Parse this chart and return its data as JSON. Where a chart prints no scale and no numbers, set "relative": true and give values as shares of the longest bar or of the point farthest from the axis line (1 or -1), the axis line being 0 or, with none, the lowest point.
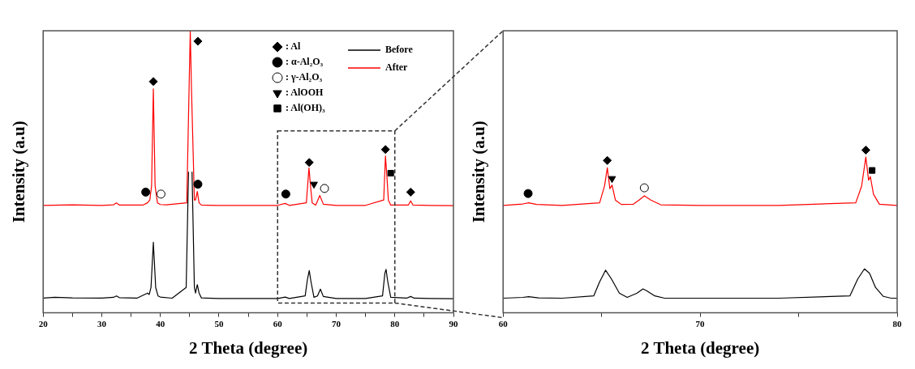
{
  "chart_data": [
    {
      "type": "line",
      "relative": true,
      "xlabel": "2 Theta (degree)",
      "ylabel": "Intensity (a.u)",
      "legend": "top right",
      "xlim": [
        20,
        90
      ],
      "xticks": [
        20,
        {
          "value": 25,
          "label": null
        },
        30,
        {
          "value": 35,
          "label": null
        },
        40,
        {
          "value": 45,
          "label": null
        },
        50,
        {
          "value": 55,
          "label": null
        },
        60,
        {
          "value": 65,
          "label": null
        },
        70,
        {
          "value": 75,
          "label": null
        },
        80,
        {
          "value": 85,
          "label": null
        },
        90
      ],
      "series": [
        {
          "name": "Before",
          "type": "line",
          "color": "#000000",
          "x": [
            20,
            22,
            25,
            30,
            32,
            32.5,
            33,
            36,
            37.8,
            38.1,
            38.4,
            38.8,
            39.2,
            39.6,
            40,
            42,
            44.4,
            44.8,
            45.1,
            45.4,
            45.8,
            46.0,
            46.3,
            46.6,
            47,
            50,
            55,
            60,
            61.3,
            62,
            64.7,
            65.1,
            65.4,
            65.7,
            66.2,
            66.8,
            67.3,
            67.8,
            70,
            75,
            77.9,
            78.3,
            78.5,
            78.8,
            79.3,
            82,
            82.7,
            83.3,
            86,
            90
          ],
          "values": [
            0.052,
            0.055,
            0.053,
            0.052,
            0.055,
            0.06,
            0.054,
            0.052,
            0.07,
            0.065,
            0.09,
            0.25,
            0.09,
            0.06,
            0.056,
            0.052,
            0.09,
            0.5,
            null,
            0.5,
            0.09,
            0.07,
            0.1,
            0.07,
            0.053,
            0.051,
            0.051,
            0.051,
            0.056,
            0.051,
            0.06,
            0.12,
            0.15,
            0.11,
            0.055,
            0.06,
            0.084,
            0.058,
            0.051,
            0.051,
            0.06,
            0.14,
            0.154,
            0.11,
            0.055,
            0.052,
            0.058,
            0.052,
            0.051,
            0.05
          ]
        },
        {
          "name": "After",
          "type": "line",
          "color": "#ff0000",
          "x": [
            20,
            25,
            30,
            32,
            32.5,
            33,
            37,
            37.8,
            38.2,
            38.5,
            38.8,
            39.1,
            39.5,
            40,
            41,
            44.5,
            44.9,
            45.1,
            45.3,
            45.8,
            46.0,
            46.3,
            46.6,
            47,
            50,
            55,
            60,
            61.3,
            62,
            64.9,
            65.35,
            65.6,
            65.9,
            66.5,
            67.2,
            67.8,
            70,
            75,
            78.1,
            78.4,
            78.65,
            78.9,
            79.3,
            82.3,
            82.7,
            83.1,
            86,
            90
          ],
          "values": [
            0.381,
            0.383,
            0.381,
            0.383,
            0.39,
            0.382,
            0.382,
            0.39,
            0.4,
            0.45,
            0.794,
            0.45,
            0.39,
            0.384,
            0.383,
            0.39,
            0.8,
            1.0,
            0.8,
            0.4,
            0.4,
            0.43,
            0.39,
            0.382,
            0.381,
            0.381,
            0.381,
            0.388,
            0.381,
            0.39,
            0.514,
            0.453,
            0.39,
            0.382,
            0.416,
            0.385,
            0.381,
            0.381,
            0.4,
            0.556,
            0.483,
            0.4,
            0.382,
            0.382,
            0.397,
            0.382,
            0.381,
            0.38
          ]
        },
        {
          "name": ": Al",
          "type": "scatter",
          "marker": "diamond",
          "color": "#000000",
          "x": [
            38.8,
            46.4,
            65.4,
            78.4,
            82.7
          ],
          "values": [
            0.82,
            0.963,
            0.533,
            0.579,
            0.428
          ]
        },
        {
          "name": ": α-Al₂O₃",
          "type": "scatter",
          "marker": "circle",
          "color": "#000000",
          "x": [
            37.5,
            46.4,
            61.4
          ],
          "values": [
            0.428,
            0.456,
            0.421
          ]
        },
        {
          "name": ": γ-Al₂O₃",
          "type": "scatter",
          "marker": "circle",
          "color": "#ffffff",
          "x": [
            40.1,
            68.0
          ],
          "values": [
            0.421,
            0.441
          ]
        },
        {
          "name": ": AlOOH",
          "type": "scatter",
          "marker": "triangle",
          "color": "#000000",
          "x": [
            66.2
          ],
          "values": [
            0.456
          ]
        },
        {
          "name": ": Al(OH)₃",
          "type": "scatter",
          "marker": "square",
          "color": "#000000",
          "x": [
            79.3
          ],
          "values": [
            0.495
          ]
        }
      ]
    },
    {
      "type": "line",
      "relative": true,
      "xlabel": "2 Theta (degree)",
      "ylabel": "Intensity (a.u)",
      "xlim": [
        60,
        80
      ],
      "xticks": [
        60,
        {
          "value": 65,
          "label": null
        },
        70,
        {
          "value": 75,
          "label": null
        },
        80
      ],
      "series": [
        {
          "type": "line",
          "color": "#000000",
          "x": [
            60,
            61,
            61.3,
            61.8,
            63,
            64.6,
            64.9,
            65.2,
            65.5,
            65.9,
            66.3,
            66.8,
            67.1,
            67.3,
            67.7,
            68.2,
            70,
            74,
            77.6,
            78,
            78.34,
            78.6,
            78.9,
            79.3,
            79.7,
            80
          ],
          "values": [
            0.09,
            0.095,
            0.099,
            0.092,
            0.09,
            0.104,
            0.191,
            0.262,
            0.208,
            0.121,
            0.095,
            0.121,
            0.147,
            0.135,
            0.104,
            0.09,
            0.09,
            0.09,
            0.104,
            0.208,
            0.27,
            0.243,
            0.156,
            0.101,
            0.09,
            0.09
          ]
        },
        {
          "type": "line",
          "color": "#ff0000",
          "x": [
            60,
            61,
            61.3,
            61.7,
            63,
            64.9,
            65.15,
            65.29,
            65.42,
            65.53,
            65.7,
            66,
            66.6,
            66.9,
            67.17,
            67.5,
            68,
            70,
            74,
            77.9,
            78.2,
            78.41,
            78.55,
            78.64,
            78.8,
            79.1,
            80
          ],
          "values": [
            0.66,
            0.669,
            0.676,
            0.666,
            0.66,
            0.676,
            0.78,
            0.891,
            0.763,
            0.785,
            0.693,
            0.666,
            0.667,
            0.693,
            0.719,
            0.693,
            0.664,
            0.66,
            0.66,
            0.676,
            0.78,
            0.957,
            0.815,
            0.837,
            0.728,
            0.667,
            0.66
          ]
        },
        {
          "type": "scatter",
          "marker": "diamond",
          "color": "#000000",
          "x": [
            65.29,
            78.41
          ],
          "values": [
            0.936,
            1
          ]
        },
        {
          "type": "scatter",
          "marker": "circle",
          "color": "#000000",
          "x": [
            61.27
          ],
          "values": [
            0.733
          ]
        },
        {
          "type": "scatter",
          "marker": "circle",
          "color": "#ffffff",
          "x": [
            67.17
          ],
          "values": [
            0.768
          ]
        },
        {
          "type": "scatter",
          "marker": "triangle",
          "color": "#000000",
          "x": [
            65.53
          ],
          "values": [
            0.825
          ]
        },
        {
          "type": "scatter",
          "marker": "square",
          "color": "#000000",
          "x": [
            78.73
          ],
          "values": [
            0.875
          ]
        }
      ]
    }
  ]
}
